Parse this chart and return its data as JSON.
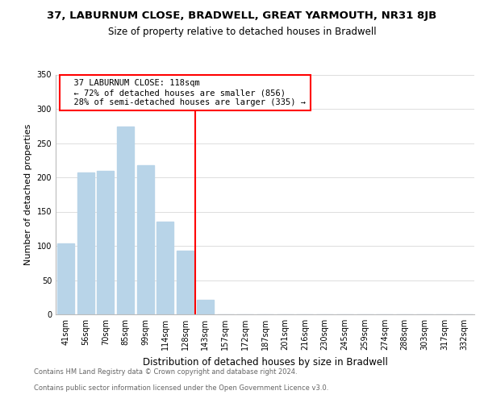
{
  "title_line1": "37, LABURNUM CLOSE, BRADWELL, GREAT YARMOUTH, NR31 8JB",
  "title_line2": "Size of property relative to detached houses in Bradwell",
  "xlabel": "Distribution of detached houses by size in Bradwell",
  "ylabel": "Number of detached properties",
  "categories": [
    "41sqm",
    "56sqm",
    "70sqm",
    "85sqm",
    "99sqm",
    "114sqm",
    "128sqm",
    "143sqm",
    "157sqm",
    "172sqm",
    "187sqm",
    "201sqm",
    "216sqm",
    "230sqm",
    "245sqm",
    "259sqm",
    "274sqm",
    "288sqm",
    "303sqm",
    "317sqm",
    "332sqm"
  ],
  "values": [
    103,
    207,
    209,
    274,
    218,
    135,
    93,
    21,
    0,
    0,
    0,
    0,
    0,
    0,
    0,
    0,
    0,
    0,
    0,
    0,
    0
  ],
  "bar_color": "#b8d4e8",
  "bar_edgecolor": "#b8d4e8",
  "vline_x": 6.5,
  "vline_color": "red",
  "annotation_text": "  37 LABURNUM CLOSE: 118sqm\n  ← 72% of detached houses are smaller (856)\n  28% of semi-detached houses are larger (335) →",
  "annotation_box_facecolor": "white",
  "annotation_box_edgecolor": "red",
  "ylim": [
    0,
    350
  ],
  "yticks": [
    0,
    50,
    100,
    150,
    200,
    250,
    300,
    350
  ],
  "footer_line1": "Contains HM Land Registry data © Crown copyright and database right 2024.",
  "footer_line2": "Contains public sector information licensed under the Open Government Licence v3.0.",
  "background_color": "white",
  "grid_color": "#dddddd",
  "title1_fontsize": 9.5,
  "title2_fontsize": 8.5,
  "ylabel_fontsize": 8,
  "xlabel_fontsize": 8.5,
  "tick_fontsize": 7,
  "annotation_fontsize": 7.5,
  "footer_fontsize": 6
}
